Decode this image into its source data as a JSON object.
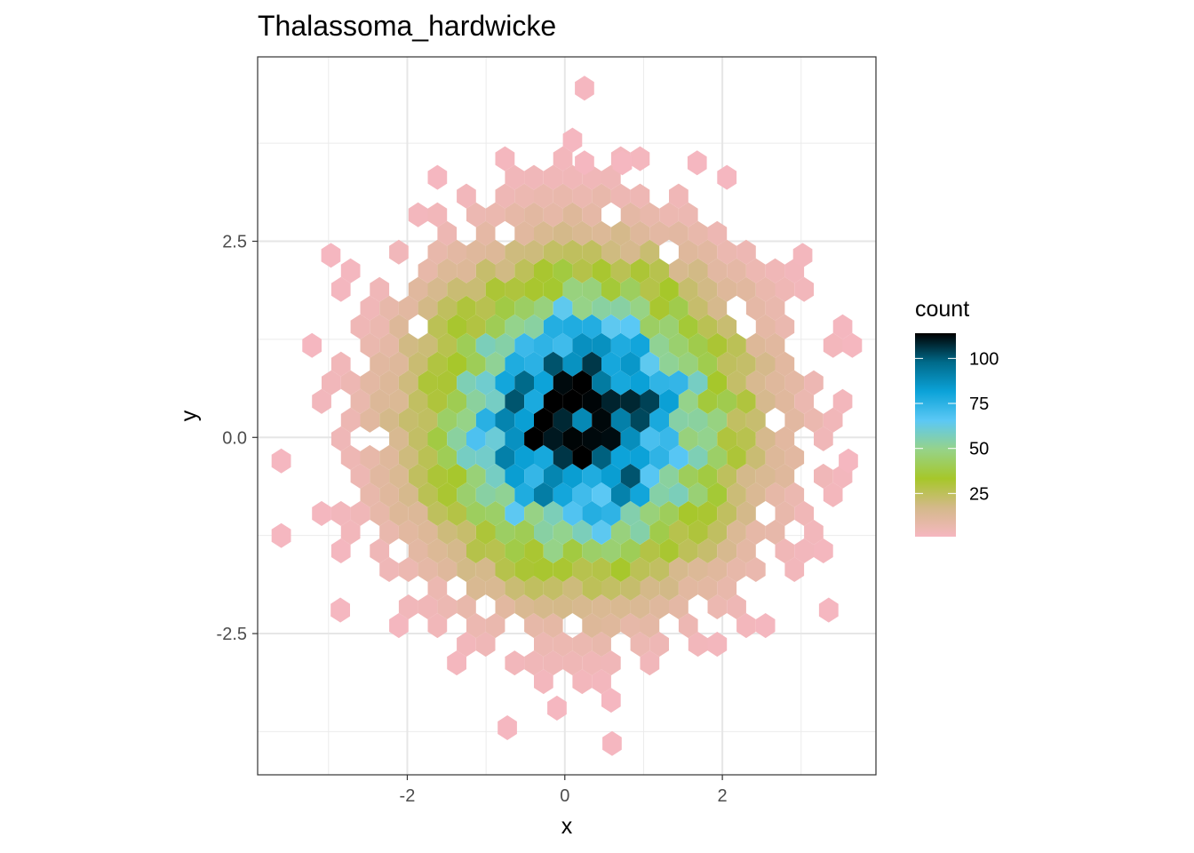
{
  "chart_data": {
    "type": "heatmap",
    "subtype": "hexbin",
    "title": "Thalassoma_hardwicke",
    "xlabel": "x",
    "ylabel": "y",
    "xlim": [
      -3.9,
      3.95
    ],
    "ylim": [
      -4.3,
      4.85
    ],
    "x_ticks": [
      {
        "value": -2,
        "label": "-2"
      },
      {
        "value": 0,
        "label": "0"
      },
      {
        "value": 2,
        "label": "2"
      }
    ],
    "y_ticks": [
      {
        "value": -2.5,
        "label": "-2.5"
      },
      {
        "value": 0,
        "label": "0.0"
      },
      {
        "value": 2.5,
        "label": "2.5"
      }
    ],
    "grid": true,
    "legend": {
      "title": "count",
      "position": "right",
      "range": [
        1,
        114
      ],
      "ticks": [
        {
          "value": 25,
          "label": "25"
        },
        {
          "value": 50,
          "label": "50"
        },
        {
          "value": 75,
          "label": "75"
        },
        {
          "value": 100,
          "label": "100"
        }
      ],
      "colors": [
        "#F5B7C0",
        "#D4B98A",
        "#A6C72A",
        "#96D389",
        "#5BC8F5",
        "#0BA2D8",
        "#006A8A",
        "#000000"
      ]
    },
    "distribution": {
      "center_x": 0.22,
      "center_y": 0.22,
      "sd_x": 1.2,
      "sd_y": 1.2,
      "peak_count": 114,
      "min_count": 1
    },
    "isolated_bins": [
      {
        "x": 0.25,
        "y": 4.45,
        "count": 1
      },
      {
        "x": 0.25,
        "y": 3.5,
        "count": 1
      },
      {
        "x": 0.73,
        "y": 3.5,
        "count": 1
      },
      {
        "x": 1.68,
        "y": 3.5,
        "count": 1
      },
      {
        "x": -2.97,
        "y": 2.32,
        "count": 1
      },
      {
        "x": 3.02,
        "y": 2.32,
        "count": 2
      },
      {
        "x": -3.6,
        "y": -0.3,
        "count": 1
      },
      {
        "x": -3.6,
        "y": -1.25,
        "count": 1
      },
      {
        "x": 3.6,
        "y": -0.3,
        "count": 1
      },
      {
        "x": 3.35,
        "y": -2.2,
        "count": 1
      },
      {
        "x": -2.85,
        "y": -2.2,
        "count": 1
      },
      {
        "x": -0.73,
        "y": -3.7,
        "count": 1
      },
      {
        "x": 0.6,
        "y": -3.9,
        "count": 1
      },
      {
        "x": -0.1,
        "y": -3.45,
        "count": 1
      }
    ]
  }
}
